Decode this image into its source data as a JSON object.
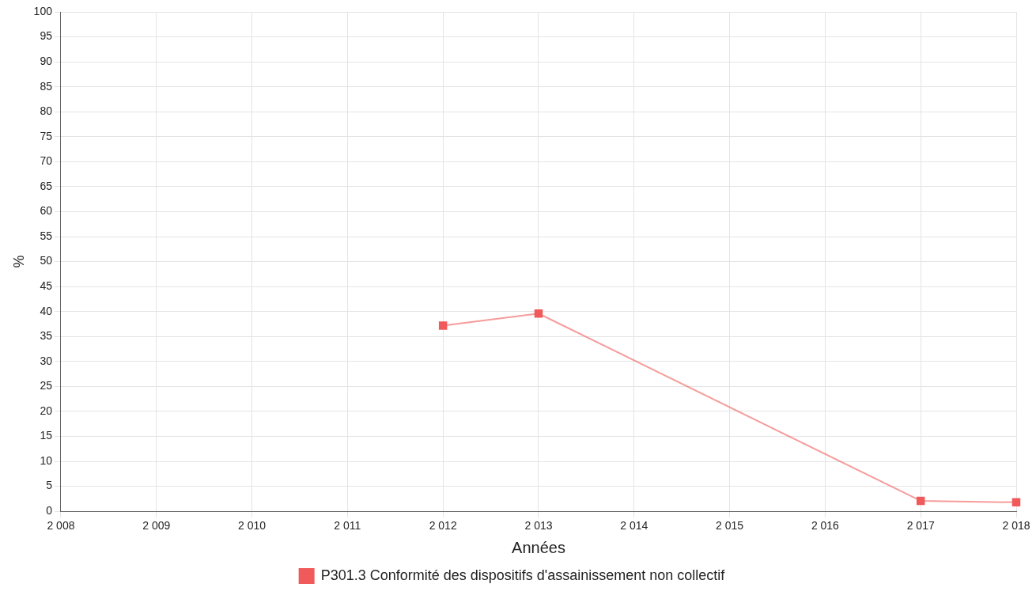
{
  "chart_data": {
    "type": "line",
    "xlabel": "Années",
    "ylabel": "%",
    "x": [
      2012,
      2013,
      2017,
      2018
    ],
    "series": [
      {
        "name": "P301.3 Conformité des dispositifs d'assainissement non collectif",
        "color": "#f05a5a",
        "values": [
          37.2,
          39.6,
          2.1,
          1.8
        ]
      }
    ],
    "xlim": [
      2008,
      2018
    ],
    "xticks": [
      {
        "value": 2008,
        "label": "2 008"
      },
      {
        "value": 2009,
        "label": "2 009"
      },
      {
        "value": 2010,
        "label": "2 010"
      },
      {
        "value": 2011,
        "label": "2 011"
      },
      {
        "value": 2012,
        "label": "2 012"
      },
      {
        "value": 2013,
        "label": "2 013"
      },
      {
        "value": 2014,
        "label": "2 014"
      },
      {
        "value": 2015,
        "label": "2 015"
      },
      {
        "value": 2016,
        "label": "2 016"
      },
      {
        "value": 2017,
        "label": "2 017"
      },
      {
        "value": 2018,
        "label": "2 018"
      }
    ],
    "ylim": [
      0,
      100
    ],
    "yticks": [
      0,
      5,
      10,
      15,
      20,
      25,
      30,
      35,
      40,
      45,
      50,
      55,
      60,
      65,
      70,
      75,
      80,
      85,
      90,
      95,
      100
    ],
    "grid": true,
    "legend": "bottom",
    "marker": "square",
    "line_style": "solid"
  }
}
